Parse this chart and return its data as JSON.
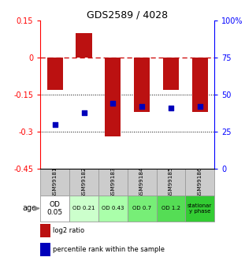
{
  "title": "GDS2589 / 4028",
  "samples": [
    "GSM99181",
    "GSM99182",
    "GSM99183",
    "GSM99184",
    "GSM99185",
    "GSM99186"
  ],
  "log2_ratio": [
    -0.13,
    0.1,
    -0.32,
    -0.22,
    -0.13,
    -0.22
  ],
  "percentile_rank": [
    30,
    38,
    44,
    42,
    41,
    42
  ],
  "bar_color": "#bb1111",
  "dot_color": "#0000bb",
  "ylim_left": [
    -0.45,
    0.15
  ],
  "ylim_right": [
    0,
    100
  ],
  "yticks_left": [
    0.15,
    0,
    -0.15,
    -0.3,
    -0.45
  ],
  "yticks_right": [
    100,
    75,
    50,
    25,
    0
  ],
  "hlines_dashed": [
    0
  ],
  "hlines_dotted": [
    -0.15,
    -0.3
  ],
  "age_labels": [
    "OD\n0.05",
    "OD 0.21",
    "OD 0.43",
    "OD 0.7",
    "OD 1.2",
    "stationar\ny phase"
  ],
  "age_bg_colors": [
    "#ffffff",
    "#ccffcc",
    "#aaffaa",
    "#77ee77",
    "#55dd55",
    "#33cc33"
  ],
  "sample_bg_color": "#cccccc",
  "sample_edge_color": "#999999",
  "legend_items": [
    {
      "label": "log2 ratio",
      "color": "#bb1111"
    },
    {
      "label": "percentile rank within the sample",
      "color": "#0000bb"
    }
  ],
  "age_label": "age",
  "bar_width": 0.55
}
